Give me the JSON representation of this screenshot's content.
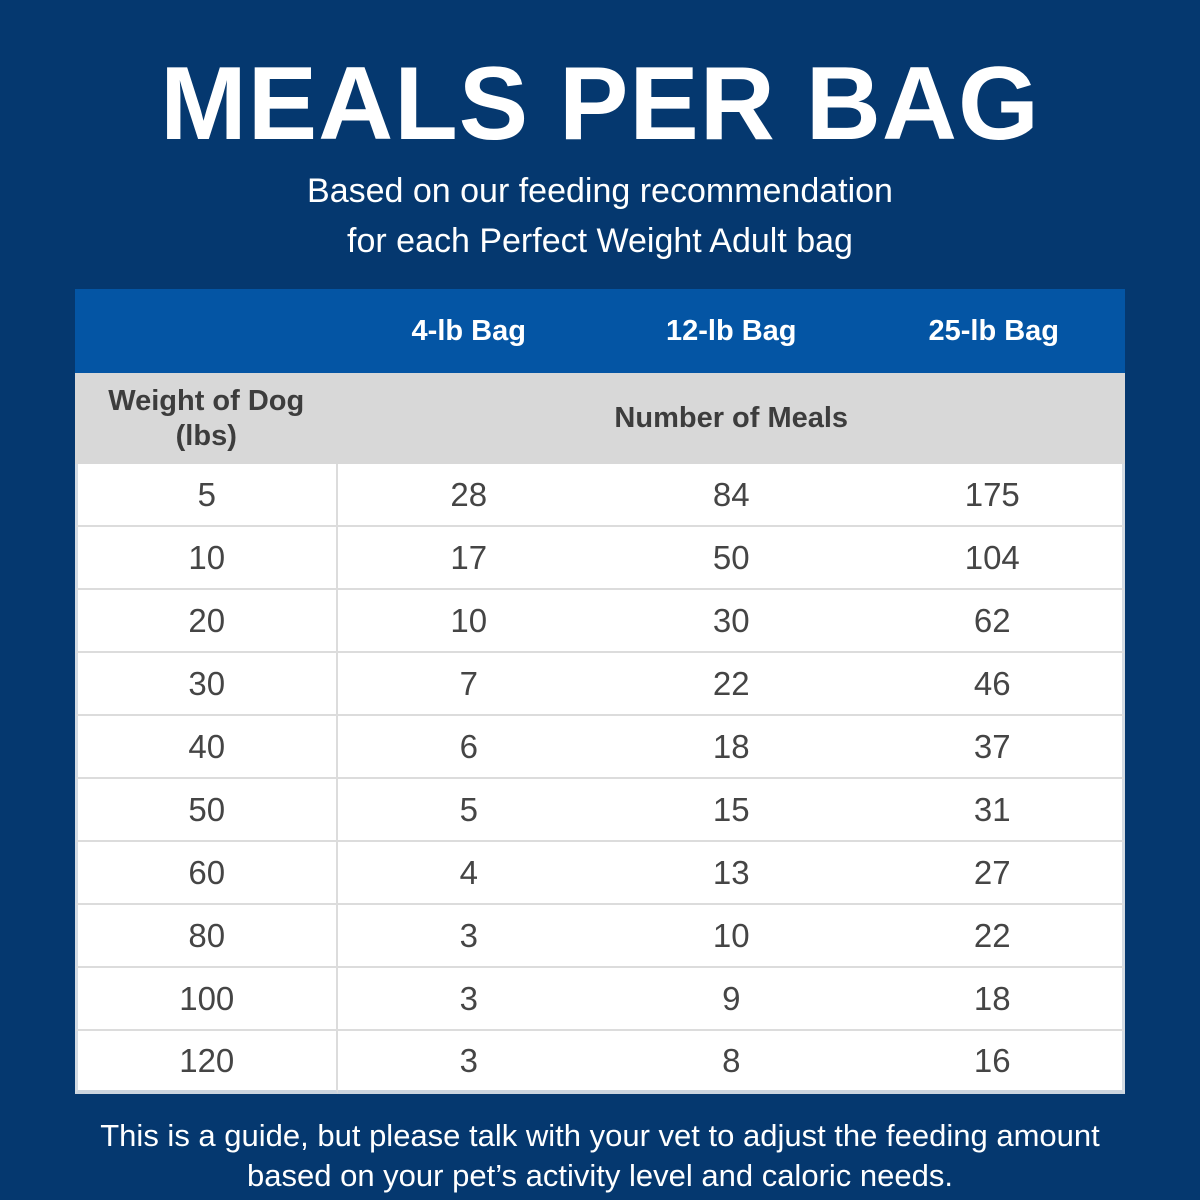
{
  "page": {
    "title": "MEALS PER BAG",
    "subtitle_line1": "Based on our feeding recommendation",
    "subtitle_line2": "for each Perfect Weight Adult bag",
    "footnote_line1": "This is a guide, but please talk with your vet to adjust the feeding amount",
    "footnote_line2": "based on your pet’s activity level and caloric needs."
  },
  "colors": {
    "background_navy": "#05386f",
    "header_blue": "#0455a4",
    "subheader_gray": "#d8d8d8",
    "row_white": "#ffffff",
    "row_border_gray": "#dcdcdc",
    "outer_border": "#ccd5df",
    "header_text": "#ffffff",
    "label_text": "#3d3d3d",
    "data_text": "#454545"
  },
  "table": {
    "bag_headers": {
      "col1": "4-lb Bag",
      "col2": "12-lb Bag",
      "col3": "25-lb Bag"
    },
    "row_header_line1": "Weight of Dog",
    "row_header_line2": "(lbs)",
    "meals_header": "Number of Meals",
    "rows": [
      {
        "weight": "5",
        "meals": [
          "28",
          "84",
          "175"
        ]
      },
      {
        "weight": "10",
        "meals": [
          "17",
          "50",
          "104"
        ]
      },
      {
        "weight": "20",
        "meals": [
          "10",
          "30",
          "62"
        ]
      },
      {
        "weight": "30",
        "meals": [
          "7",
          "22",
          "46"
        ]
      },
      {
        "weight": "40",
        "meals": [
          "6",
          "18",
          "37"
        ]
      },
      {
        "weight": "50",
        "meals": [
          "5",
          "15",
          "31"
        ]
      },
      {
        "weight": "60",
        "meals": [
          "4",
          "13",
          "27"
        ]
      },
      {
        "weight": "80",
        "meals": [
          "3",
          "10",
          "22"
        ]
      },
      {
        "weight": "100",
        "meals": [
          "3",
          "9",
          "18"
        ]
      },
      {
        "weight": "120",
        "meals": [
          "3",
          "8",
          "16"
        ]
      }
    ]
  },
  "chart_data": {
    "type": "table",
    "title": "MEALS PER BAG",
    "subtitle": "Based on our feeding recommendation for each Perfect Weight Adult bag",
    "columns": [
      "Weight of Dog (lbs)",
      "4-lb Bag",
      "12-lb Bag",
      "25-lb Bag"
    ],
    "value_label": "Number of Meals",
    "rows": [
      [
        5,
        28,
        84,
        175
      ],
      [
        10,
        17,
        50,
        104
      ],
      [
        20,
        10,
        30,
        62
      ],
      [
        30,
        7,
        22,
        46
      ],
      [
        40,
        6,
        18,
        37
      ],
      [
        50,
        5,
        15,
        31
      ],
      [
        60,
        4,
        13,
        27
      ],
      [
        80,
        3,
        10,
        22
      ],
      [
        100,
        3,
        9,
        18
      ],
      [
        120,
        3,
        8,
        16
      ]
    ],
    "footnote": "This is a guide, but please talk with your vet to adjust the feeding amount based on your pet’s activity level and caloric needs."
  }
}
